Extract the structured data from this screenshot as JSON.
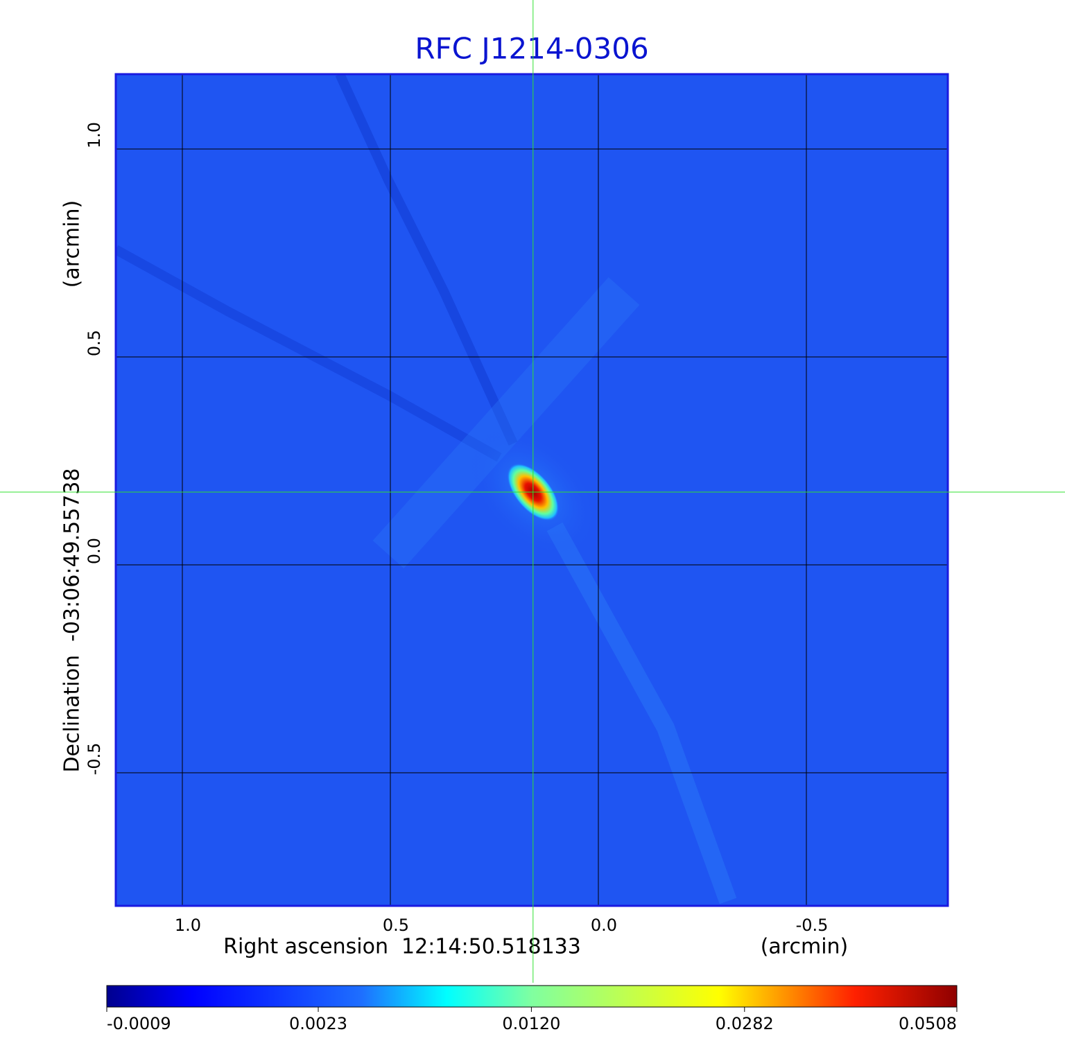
{
  "chart_data": {
    "type": "image",
    "title": "RFC J1214-0306",
    "x_label": "Right ascension  12:14:50.518133",
    "x_unit": "(arcmin)",
    "y_label": "Declination  -03:06:49.55738",
    "y_unit": "(arcmin)",
    "xlim": [
      1.16,
      -0.84
    ],
    "ylim": [
      -0.82,
      1.18
    ],
    "xticks": [
      {
        "value": 1,
        "label": "1.0"
      },
      0.5,
      {
        "value": 0,
        "label": "0.0"
      },
      -0.5
    ],
    "yticks": [
      -0.5,
      {
        "value": 0,
        "label": "0.0"
      },
      0.5,
      {
        "value": 1,
        "label": "1.0"
      }
    ],
    "grid": true,
    "marker": {
      "x": 0.157,
      "y": 0.175
    },
    "colorbar": {
      "scale": "sqrt",
      "clim": [
        -0.0009,
        0.0508
      ],
      "ticks": [
        -0.0009,
        0.0023,
        {
          "value": 0.012,
          "label": "0.0120"
        },
        0.0282,
        0.0508
      ]
    }
  }
}
